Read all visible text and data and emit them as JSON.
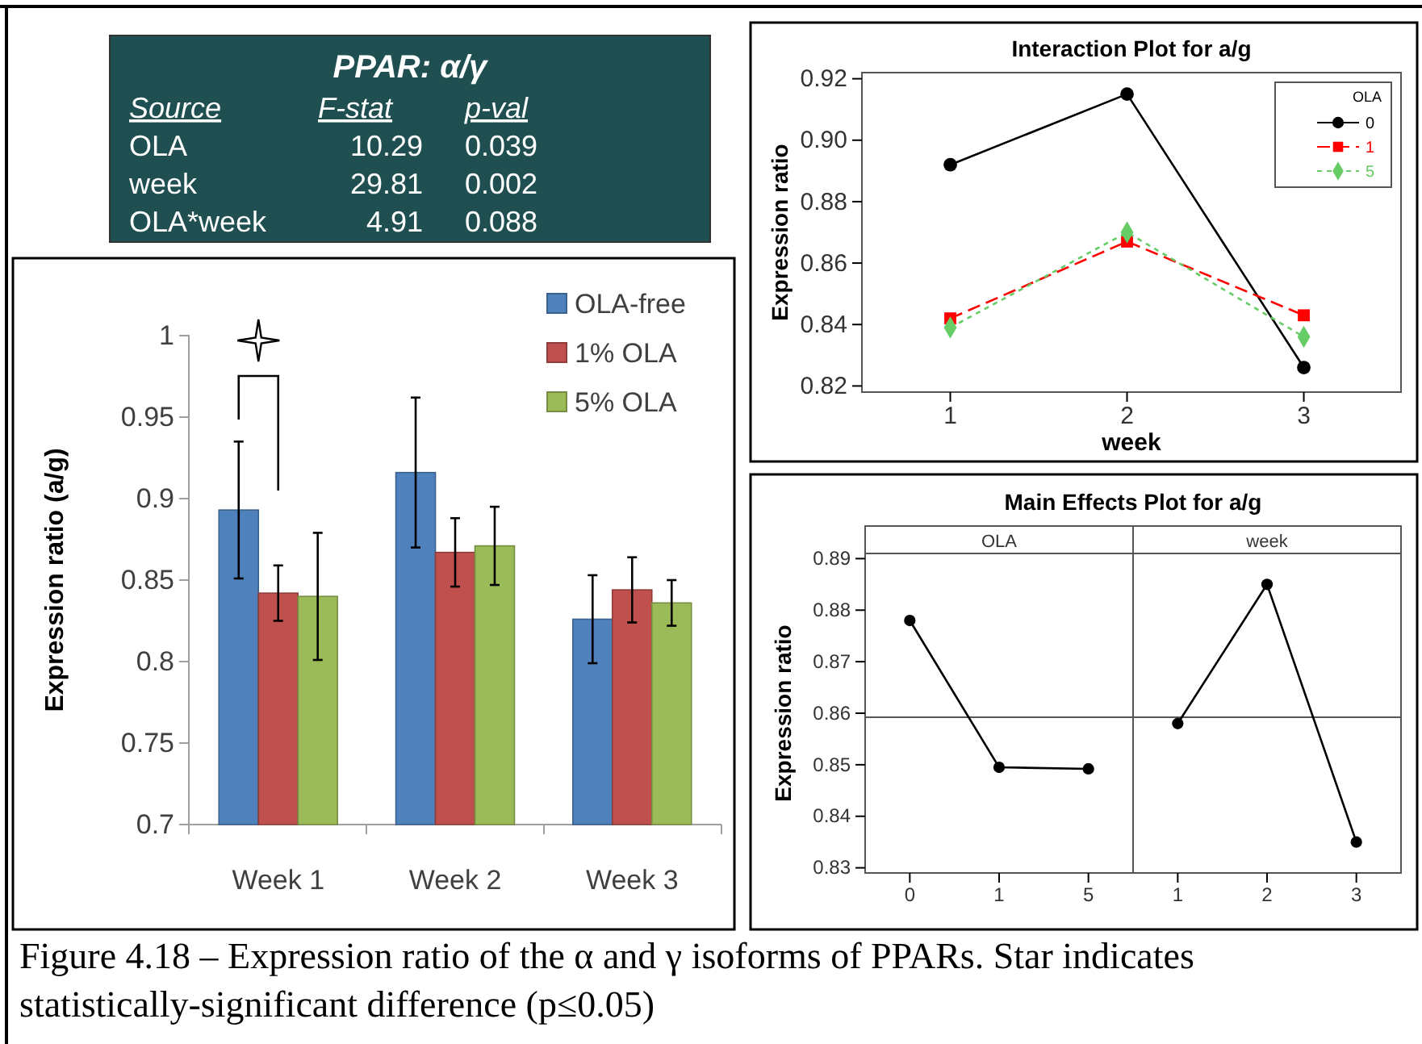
{
  "chart_data": [
    {
      "type": "other",
      "title": "PPAR: α/γ",
      "annotations": [
        "Source",
        "F-stat",
        "p-val",
        "OLA",
        "10.29",
        "0.039",
        "week",
        "29.81",
        "0.002",
        "OLA*week",
        "4.91",
        "0.088"
      ]
    },
    {
      "type": "bar",
      "categories": [
        "Week 1",
        "Week 2",
        "Week 3"
      ],
      "ylabel": "Expression ratio (a/g)",
      "ylim": [
        0.7,
        1
      ],
      "yticks": [
        0.7,
        0.75,
        0.8,
        0.85,
        0.9,
        0.95,
        1
      ],
      "legend": "top right",
      "series": [
        {
          "name": "OLA-free",
          "color": "#4f81bd",
          "values": [
            0.893,
            0.916,
            0.826
          ],
          "errors": [
            0.042,
            0.046,
            0.027
          ]
        },
        {
          "name": "1% OLA",
          "color": "#c0504d",
          "values": [
            0.842,
            0.867,
            0.844
          ],
          "errors": [
            0.017,
            0.021,
            0.02
          ]
        },
        {
          "name": "5% OLA",
          "color": "#9bbb59",
          "values": [
            0.84,
            0.871,
            0.836
          ],
          "errors": [
            0.039,
            0.024,
            0.014
          ]
        }
      ],
      "annotations": [
        "Figure 4.18 – Expression ratio of the α and γ isoforms of PPARs.  Star indicates statistically-significant difference (p≤0.05)"
      ]
    },
    {
      "type": "line",
      "title": "Interaction Plot for a/g",
      "xlabel": "week",
      "ylabel": "Expression ratio",
      "x": [
        1,
        2,
        3
      ],
      "xlim": [
        0.5,
        3.55
      ],
      "xticks": [
        1,
        2,
        3
      ],
      "ylim": [
        0.818,
        0.922
      ],
      "yticks": [
        {
          "value": 0.82,
          "label": "0.82"
        },
        {
          "value": 0.84,
          "label": "0.84"
        },
        {
          "value": 0.86,
          "label": "0.86"
        },
        {
          "value": 0.88,
          "label": "0.88"
        },
        {
          "value": 0.9,
          "label": "0.90"
        },
        {
          "value": 0.92,
          "label": "0.92"
        }
      ],
      "legend": "top right",
      "legend_title": "OLA",
      "series": [
        {
          "name": "0",
          "color": "#000000",
          "values": [
            0.892,
            0.915,
            0.826
          ],
          "marker": "circle",
          "line_style": "solid"
        },
        {
          "name": "1",
          "color": "#ff0000",
          "values": [
            0.842,
            0.867,
            0.843
          ],
          "marker": "square",
          "line_style": "dashed"
        },
        {
          "name": "5",
          "color": "#66cc66",
          "values": [
            0.839,
            0.87,
            0.836
          ],
          "marker": "diamond",
          "line_style": "dotted"
        }
      ]
    },
    {
      "type": "line",
      "title": "Main Effects Plot for a/g",
      "subtitle": "OLA",
      "ylabel": "Expression ratio",
      "categories": [
        "0",
        "1",
        "5"
      ],
      "ylim": [
        0.829,
        0.891
      ],
      "yticks": [
        0.83,
        0.84,
        0.85,
        0.86,
        0.87,
        0.88,
        0.89
      ],
      "marker": "circle",
      "line_style": "solid",
      "series": [
        {
          "color": "#000000",
          "values": [
            0.878,
            0.8495,
            0.8492
          ]
        }
      ],
      "ref_lines": [
        {
          "axis": "y",
          "value": 0.8592,
          "color": "#555555"
        }
      ]
    },
    {
      "type": "line",
      "subtitle": "week",
      "categories": [
        "1",
        "2",
        "3"
      ],
      "ylim": [
        0.829,
        0.891
      ],
      "tick_labels": "x",
      "marker": "circle",
      "line_style": "solid",
      "series": [
        {
          "color": "#000000",
          "values": [
            0.858,
            0.885,
            0.835
          ]
        }
      ],
      "ref_lines": [
        {
          "axis": "y",
          "value": 0.8592,
          "color": "#555555"
        }
      ]
    }
  ]
}
